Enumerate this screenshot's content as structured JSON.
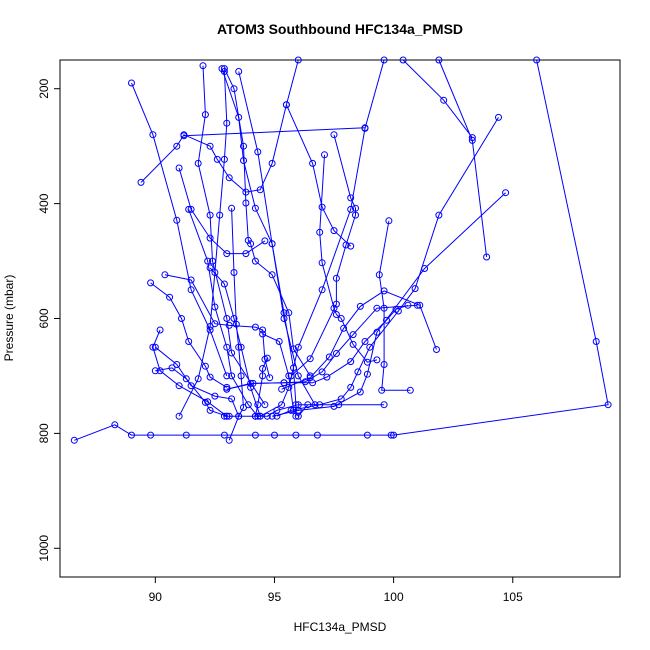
{
  "chart_data": {
    "type": "scatter",
    "title": "ATOM3 Southbound HFC134a_PMSD",
    "xlabel": "HFC134a_PMSD",
    "ylabel": "Pressure (mbar)",
    "xlim": [
      86,
      109.5
    ],
    "ylim": [
      1050,
      150
    ],
    "y_axis_reversed": true,
    "x_ticks": [
      90,
      95,
      100,
      105
    ],
    "y_ticks": [
      200,
      400,
      600,
      800,
      1000
    ],
    "grid": false,
    "legend": "none",
    "series_color": "#0000ff",
    "marker": "open-circle",
    "connected": true,
    "profiles": [
      {
        "points": [
          [
            92.9,
            770
          ],
          [
            93.1,
            770
          ],
          [
            94.2,
            770
          ],
          [
            94.7,
            770
          ],
          [
            95.1,
            760
          ],
          [
            96.0,
            750
          ],
          [
            97.7,
            750
          ],
          [
            99.6,
            750
          ]
        ]
      },
      {
        "points": [
          [
            95.3,
            723
          ],
          [
            96.5,
            703
          ],
          [
            97.3,
            667
          ],
          [
            97.9,
            617
          ],
          [
            98.6,
            579
          ],
          [
            99.6,
            552
          ],
          [
            101.1,
            577
          ],
          [
            101.8,
            654
          ]
        ]
      },
      {
        "points": [
          [
            93.0,
            723
          ],
          [
            94.1,
            713
          ],
          [
            95.4,
            712
          ],
          [
            96.3,
            710
          ],
          [
            97.0,
            693
          ],
          [
            97.6,
            661
          ],
          [
            98.3,
            628
          ],
          [
            99.3,
            582
          ],
          [
            101.0,
            577
          ]
        ]
      },
      {
        "points": [
          [
            93.0,
            723
          ],
          [
            94.0,
            713
          ],
          [
            95.4,
            712
          ],
          [
            96.6,
            712
          ],
          [
            97.2,
            702
          ],
          [
            98.2,
            675
          ],
          [
            98.8,
            640
          ],
          [
            99.7,
            603
          ],
          [
            100.1,
            584
          ],
          [
            100.6,
            577
          ]
        ]
      },
      {
        "points": [
          [
            86.6,
            812
          ],
          [
            88.3,
            785
          ],
          [
            89.0,
            803
          ],
          [
            89.8,
            803
          ],
          [
            91.3,
            803
          ],
          [
            92.9,
            803
          ],
          [
            94.2,
            803
          ],
          [
            95.0,
            803
          ],
          [
            95.9,
            803
          ],
          [
            96.8,
            803
          ],
          [
            98.9,
            803
          ],
          [
            99.9,
            803
          ],
          [
            100.0,
            803
          ],
          [
            109.0,
            750
          ],
          [
            108.5,
            640
          ],
          [
            106.0,
            150
          ]
        ]
      },
      {
        "points": [
          [
            90.0,
            691
          ],
          [
            90.7,
            686
          ],
          [
            91.3,
            705
          ],
          [
            92.1,
            746
          ],
          [
            92.3,
            760
          ],
          [
            93.0,
            770
          ]
        ]
      },
      {
        "points": [
          [
            89.8,
            538
          ],
          [
            90.6,
            563
          ],
          [
            91.1,
            600
          ],
          [
            91.4,
            640
          ],
          [
            92.1,
            683
          ],
          [
            92.3,
            702
          ],
          [
            93.0,
            720
          ]
        ]
      },
      {
        "points": [
          [
            89.0,
            190
          ],
          [
            89.9,
            280
          ],
          [
            90.9,
            429
          ],
          [
            91.5,
            550
          ],
          [
            92.3,
            620
          ],
          [
            93.0,
            700
          ]
        ]
      },
      {
        "points": [
          [
            89.4,
            363
          ],
          [
            90.9,
            300
          ],
          [
            91.2,
            280
          ],
          [
            92.3,
            300
          ],
          [
            92.6,
            323
          ],
          [
            93.1,
            355
          ],
          [
            93.8,
            380
          ],
          [
            94.4,
            376
          ],
          [
            94.9,
            330
          ],
          [
            95.5,
            228
          ],
          [
            96.0,
            150
          ]
        ]
      },
      {
        "points": [
          [
            92.9,
            165
          ],
          [
            93.3,
            200
          ],
          [
            93.7,
            300
          ],
          [
            93.8,
            399
          ],
          [
            93.9,
            464
          ],
          [
            94.0,
            470
          ],
          [
            94.2,
            500
          ],
          [
            94.9,
            524
          ],
          [
            95.6,
            590
          ],
          [
            95.8,
            653
          ],
          [
            96.5,
            700
          ]
        ]
      },
      {
        "points": [
          [
            92.3,
            512
          ],
          [
            92.9,
            540
          ],
          [
            93.3,
            600
          ],
          [
            93.6,
            650
          ],
          [
            94.0,
            720
          ],
          [
            94.4,
            770
          ]
        ]
      },
      {
        "points": [
          [
            91.4,
            410
          ],
          [
            92.2,
            500
          ],
          [
            92.5,
            580
          ],
          [
            93.0,
            650
          ],
          [
            93.2,
            700
          ],
          [
            93.9,
            750
          ],
          [
            94.3,
            770
          ]
        ]
      },
      {
        "points": [
          [
            91.0,
            338
          ],
          [
            91.5,
            410
          ],
          [
            92.3,
            460
          ],
          [
            93.0,
            487
          ],
          [
            93.8,
            487
          ],
          [
            94.6,
            465
          ]
        ]
      },
      {
        "points": [
          [
            92.0,
            160
          ],
          [
            92.1,
            245
          ],
          [
            91.8,
            330
          ],
          [
            92.3,
            420
          ],
          [
            92.4,
            500
          ],
          [
            93.0,
            600
          ],
          [
            93.2,
            660
          ],
          [
            94.6,
            750
          ]
        ]
      },
      {
        "points": [
          [
            97.1,
            315
          ],
          [
            96.9,
            450
          ],
          [
            97.0,
            503
          ],
          [
            97.5,
            582
          ],
          [
            97.6,
            593
          ],
          [
            97.8,
            600
          ],
          [
            98.3,
            645
          ],
          [
            98.9,
            676
          ],
          [
            99.3,
            672
          ]
        ]
      },
      {
        "points": [
          [
            97.5,
            280
          ],
          [
            98.2,
            390
          ],
          [
            98.4,
            408
          ],
          [
            98.4,
            420
          ],
          [
            98.0,
            472
          ],
          [
            97.6,
            530
          ],
          [
            97.6,
            575
          ],
          [
            96.5,
            670
          ],
          [
            95.7,
            700
          ]
        ]
      },
      {
        "points": [
          [
            98.8,
            268
          ],
          [
            91.2,
            282
          ]
        ]
      },
      {
        "points": [
          [
            103.3,
            285
          ],
          [
            102.1,
            220
          ],
          [
            100.4,
            150
          ]
        ]
      },
      {
        "points": [
          [
            104.4,
            250
          ],
          [
            101.9,
            420
          ],
          [
            100.9,
            548
          ],
          [
            100.2,
            587
          ],
          [
            99.0,
            650
          ],
          [
            98.5,
            693
          ],
          [
            98.2,
            720
          ],
          [
            97.8,
            740
          ],
          [
            96.9,
            750
          ],
          [
            95.7,
            760
          ],
          [
            95.1,
            770
          ]
        ]
      },
      {
        "points": [
          [
            104.7,
            381
          ],
          [
            101.3,
            513
          ],
          [
            99.3,
            624
          ],
          [
            98.9,
            697
          ],
          [
            98.6,
            728
          ],
          [
            97.5,
            753
          ],
          [
            96.0,
            760
          ],
          [
            94.9,
            770
          ]
        ]
      },
      {
        "points": [
          [
            103.9,
            493
          ],
          [
            103.3,
            290
          ],
          [
            101.9,
            150
          ]
        ]
      },
      {
        "points": [
          [
            99.8,
            430
          ],
          [
            99.4,
            524
          ],
          [
            99.6,
            582
          ],
          [
            99.6,
            680
          ],
          [
            99.5,
            725
          ],
          [
            100.7,
            725
          ]
        ]
      },
      {
        "points": [
          [
            92.8,
            165
          ],
          [
            93.5,
            250
          ],
          [
            93.7,
            325
          ],
          [
            94.2,
            408
          ],
          [
            94.9,
            470
          ],
          [
            95.4,
            590
          ],
          [
            95.8,
            686
          ],
          [
            95.9,
            750
          ],
          [
            95.9,
            770
          ]
        ]
      },
      {
        "points": [
          [
            92.9,
            170
          ],
          [
            93.0,
            260
          ],
          [
            92.9,
            323
          ],
          [
            92.7,
            420
          ],
          [
            92.5,
            520
          ],
          [
            92.3,
            614
          ],
          [
            91.8,
            705
          ],
          [
            91.0,
            770
          ]
        ]
      },
      {
        "points": [
          [
            95.5,
            228
          ],
          [
            96.6,
            330
          ],
          [
            97.0,
            406
          ],
          [
            97.5,
            447
          ],
          [
            98.2,
            474
          ]
        ]
      },
      {
        "points": [
          [
            99.6,
            150
          ],
          [
            98.8,
            269
          ],
          [
            98.2,
            410
          ],
          [
            97.0,
            550
          ],
          [
            96.0,
            650
          ],
          [
            95.6,
            720
          ],
          [
            95.3,
            750
          ],
          [
            94.4,
            770
          ]
        ]
      },
      {
        "points": [
          [
            93.5,
            170
          ],
          [
            94.3,
            310
          ],
          [
            94.9,
            470
          ],
          [
            95.4,
            600
          ],
          [
            96.0,
            700
          ],
          [
            96.7,
            750
          ]
        ]
      },
      {
        "points": [
          [
            90.2,
            620
          ],
          [
            89.9,
            650
          ],
          [
            90.2,
            691
          ],
          [
            91.0,
            717
          ],
          [
            92.2,
            745
          ],
          [
            93.0,
            770
          ]
        ]
      },
      {
        "points": [
          [
            90.4,
            524
          ],
          [
            91.5,
            533
          ],
          [
            92.5,
            609
          ],
          [
            93.1,
            612
          ],
          [
            94.2,
            615
          ],
          [
            94.5,
            620
          ],
          [
            94.6,
            671
          ],
          [
            94.8,
            703
          ]
        ]
      },
      {
        "points": [
          [
            94.7,
            669
          ],
          [
            94.5,
            687
          ],
          [
            94.5,
            700
          ],
          [
            94.3,
            750
          ],
          [
            94.2,
            770
          ]
        ]
      },
      {
        "points": [
          [
            93.2,
            408
          ],
          [
            93.3,
            520
          ],
          [
            93.4,
            610
          ],
          [
            93.5,
            650
          ],
          [
            93.6,
            700
          ],
          [
            93.7,
            755
          ],
          [
            93.5,
            770
          ],
          [
            93.1,
            812
          ]
        ]
      },
      {
        "points": [
          [
            94.5,
            627
          ],
          [
            95.2,
            640
          ],
          [
            95.6,
            700
          ],
          [
            95.8,
            760
          ],
          [
            96.0,
            770
          ],
          [
            96.4,
            750
          ]
        ]
      },
      {
        "points": [
          [
            90.0,
            650
          ],
          [
            90.9,
            680
          ],
          [
            91.5,
            717
          ],
          [
            92.5,
            735
          ],
          [
            93.2,
            740
          ],
          [
            93.5,
            770
          ]
        ]
      }
    ]
  }
}
